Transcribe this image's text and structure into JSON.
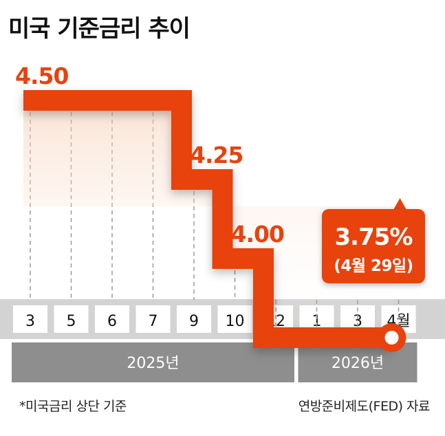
{
  "title": "미국 기준금리 추이",
  "chart_data": {
    "type": "line",
    "title": "미국 기준금리 추이",
    "categories": [
      "3",
      "5",
      "6",
      "7",
      "9",
      "10",
      "12",
      "1",
      "3",
      "4월"
    ],
    "values": [
      4.5,
      4.5,
      4.5,
      4.5,
      4.25,
      4.0,
      3.75,
      3.75,
      3.75,
      3.75
    ],
    "step_labels": [
      {
        "index": 0,
        "text": "4.50"
      },
      {
        "index": 4,
        "text": "4.25"
      },
      {
        "index": 5,
        "text": "4.00"
      }
    ],
    "callout": {
      "value": "3.75%",
      "date": "(4월 29일)"
    },
    "year_groups": [
      {
        "label": "2025년",
        "from": 0,
        "to": 6
      },
      {
        "label": "2026년",
        "from": 7,
        "to": 9
      }
    ],
    "colors": {
      "line": "#e8420e",
      "callout_bg": "#e8420e",
      "axis_band": "#d3d3d3",
      "year_band": "#8e8e8e"
    }
  },
  "footnote": "*미국금리 상단 기준",
  "source": "연방준비제도(FED) 자료"
}
